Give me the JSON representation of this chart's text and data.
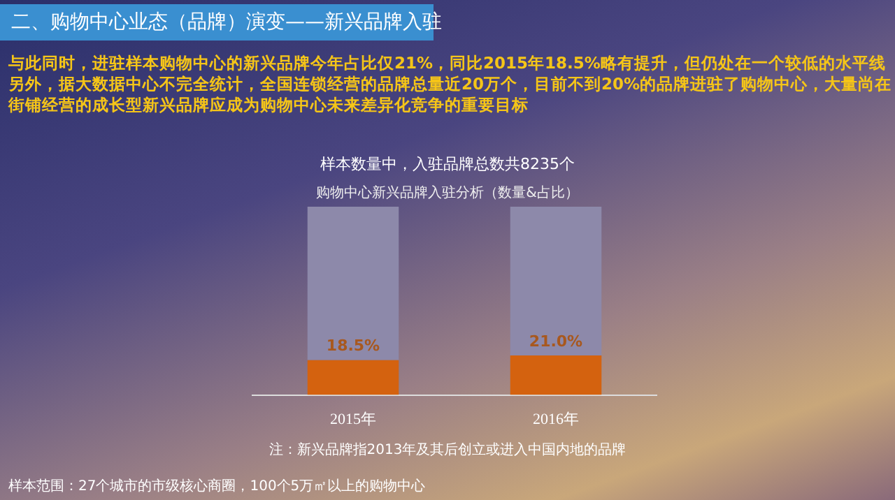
{
  "chart_data": {
    "type": "bar",
    "title": "购物中心新兴品牌入驻分析（数量&占比）",
    "subtitle": "与此同时，进驻样本购物中心的新兴品牌今年占比仅21%，同比2015年18.5%略有提升，但仍处在一个较低的水平线另外，据大数据中心不完全统计，全国连锁经营的品牌总量近20万个，目前不到20%的品牌进驻了购物中心，大量尚在街铺经营的成长型新兴品牌应成为购物中心未来差异化竞争的重要目标",
    "annotations": [
      "二、购物中心业态（品牌）演变——新兴品牌入驻",
      "样本数量中，入驻品牌总数共8235个",
      "注：新兴品牌指2013年及其后创立或进入中国内地的品牌",
      "样本范围：27个城市的市级核心商圈，100个5万㎡以上的购物中心"
    ],
    "categories": [
      "2015年",
      "2016年"
    ],
    "stacked": true,
    "ylim": [
      0,
      100
    ],
    "tick_labels": "x",
    "grid": false,
    "legend": false,
    "series": [
      {
        "color": "#d4620f",
        "values": [
          18.5,
          21.0
        ],
        "value_labels": [
          "18.5%",
          "21.0%"
        ]
      },
      {
        "color": "#8d89aa",
        "values": [
          81.5,
          79.0
        ]
      }
    ]
  }
}
